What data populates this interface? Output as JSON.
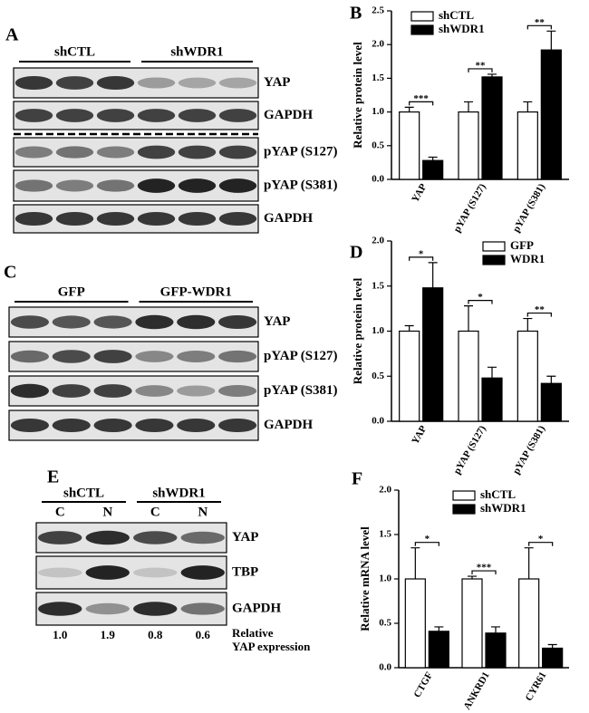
{
  "blots": [
    {
      "label": "A",
      "groups": [
        "shCTL",
        "shWDR1"
      ],
      "rows": [
        "YAP",
        "GAPDH",
        "pYAP (S127)",
        "pYAP (S381)",
        "GAPDH"
      ]
    },
    {
      "label": "C",
      "groups": [
        "GFP",
        "GFP-WDR1"
      ],
      "rows": [
        "YAP",
        "pYAP (S127)",
        "pYAP (S381)",
        "GAPDH"
      ]
    },
    {
      "label": "E",
      "groups": [
        "shCTL",
        "shWDR1"
      ],
      "lanes": [
        "C",
        "N",
        "C",
        "N"
      ],
      "rows": [
        "YAP",
        "TBP",
        "GAPDH"
      ],
      "relative_values": [
        "1.0",
        "1.9",
        "0.8",
        "0.6"
      ],
      "caption": [
        "Relative",
        "YAP expression"
      ]
    }
  ],
  "chart_data": [
    {
      "type": "bar",
      "label": "B",
      "y_label": "Relative protein level",
      "categories": [
        "YAP",
        "pYAP (S127)",
        "pYAP (S381)"
      ],
      "series": [
        {
          "name": "shCTL",
          "color": "#ffffff",
          "values": [
            1,
            1,
            1
          ],
          "errors": [
            0.07,
            0.15,
            0.15
          ]
        },
        {
          "name": "shWDR1",
          "color": "#000000",
          "values": [
            0.28,
            1.52,
            1.92
          ],
          "errors": [
            0.05,
            0.04,
            0.28
          ]
        }
      ],
      "annotations": [
        "***",
        "**",
        "**"
      ],
      "ylim": [
        0,
        2.5
      ],
      "yticks": [
        {
          "value": 0,
          "label": "0.0"
        },
        0.5,
        {
          "value": 1,
          "label": "1.0"
        },
        1.5,
        {
          "value": 2,
          "label": "2.0"
        },
        2.5
      ],
      "legend": "top-left"
    },
    {
      "type": "bar",
      "label": "D",
      "y_label": "Relative protein level",
      "categories": [
        "YAP",
        "pYAP (S127)",
        "pYAP (S381)"
      ],
      "series": [
        {
          "name": "GFP",
          "color": "#ffffff",
          "values": [
            1,
            1,
            1
          ],
          "errors": [
            0.06,
            0.28,
            0.14
          ]
        },
        {
          "name": "WDR1",
          "color": "#000000",
          "values": [
            1.48,
            0.48,
            0.42
          ],
          "errors": [
            0.28,
            0.12,
            0.08
          ]
        }
      ],
      "annotations": [
        "*",
        "*",
        "**"
      ],
      "ylim": [
        0,
        2.0
      ],
      "yticks": [
        {
          "value": 0,
          "label": "0.0"
        },
        0.5,
        {
          "value": 1,
          "label": "1.0"
        },
        1.5,
        {
          "value": 2,
          "label": "2.0"
        }
      ],
      "legend": "top-right"
    },
    {
      "type": "bar",
      "label": "F",
      "y_label": "Relative mRNA level",
      "categories": [
        "CTGF",
        "ANKRD1",
        "CYR61"
      ],
      "series": [
        {
          "name": "shCTL",
          "color": "#ffffff",
          "values": [
            1,
            1,
            1
          ],
          "errors": [
            0.35,
            0.03,
            0.35
          ]
        },
        {
          "name": "shWDR1",
          "color": "#000000",
          "values": [
            0.41,
            0.39,
            0.22
          ],
          "errors": [
            0.05,
            0.07,
            0.04
          ]
        }
      ],
      "annotations": [
        "*",
        "***",
        "*"
      ],
      "ylim": [
        0,
        2.0
      ],
      "yticks": [
        {
          "value": 0,
          "label": "0.0"
        },
        0.5,
        {
          "value": 1,
          "label": "1.0"
        },
        1.5,
        {
          "value": 2,
          "label": "2.0"
        }
      ],
      "legend": "top-center"
    }
  ]
}
